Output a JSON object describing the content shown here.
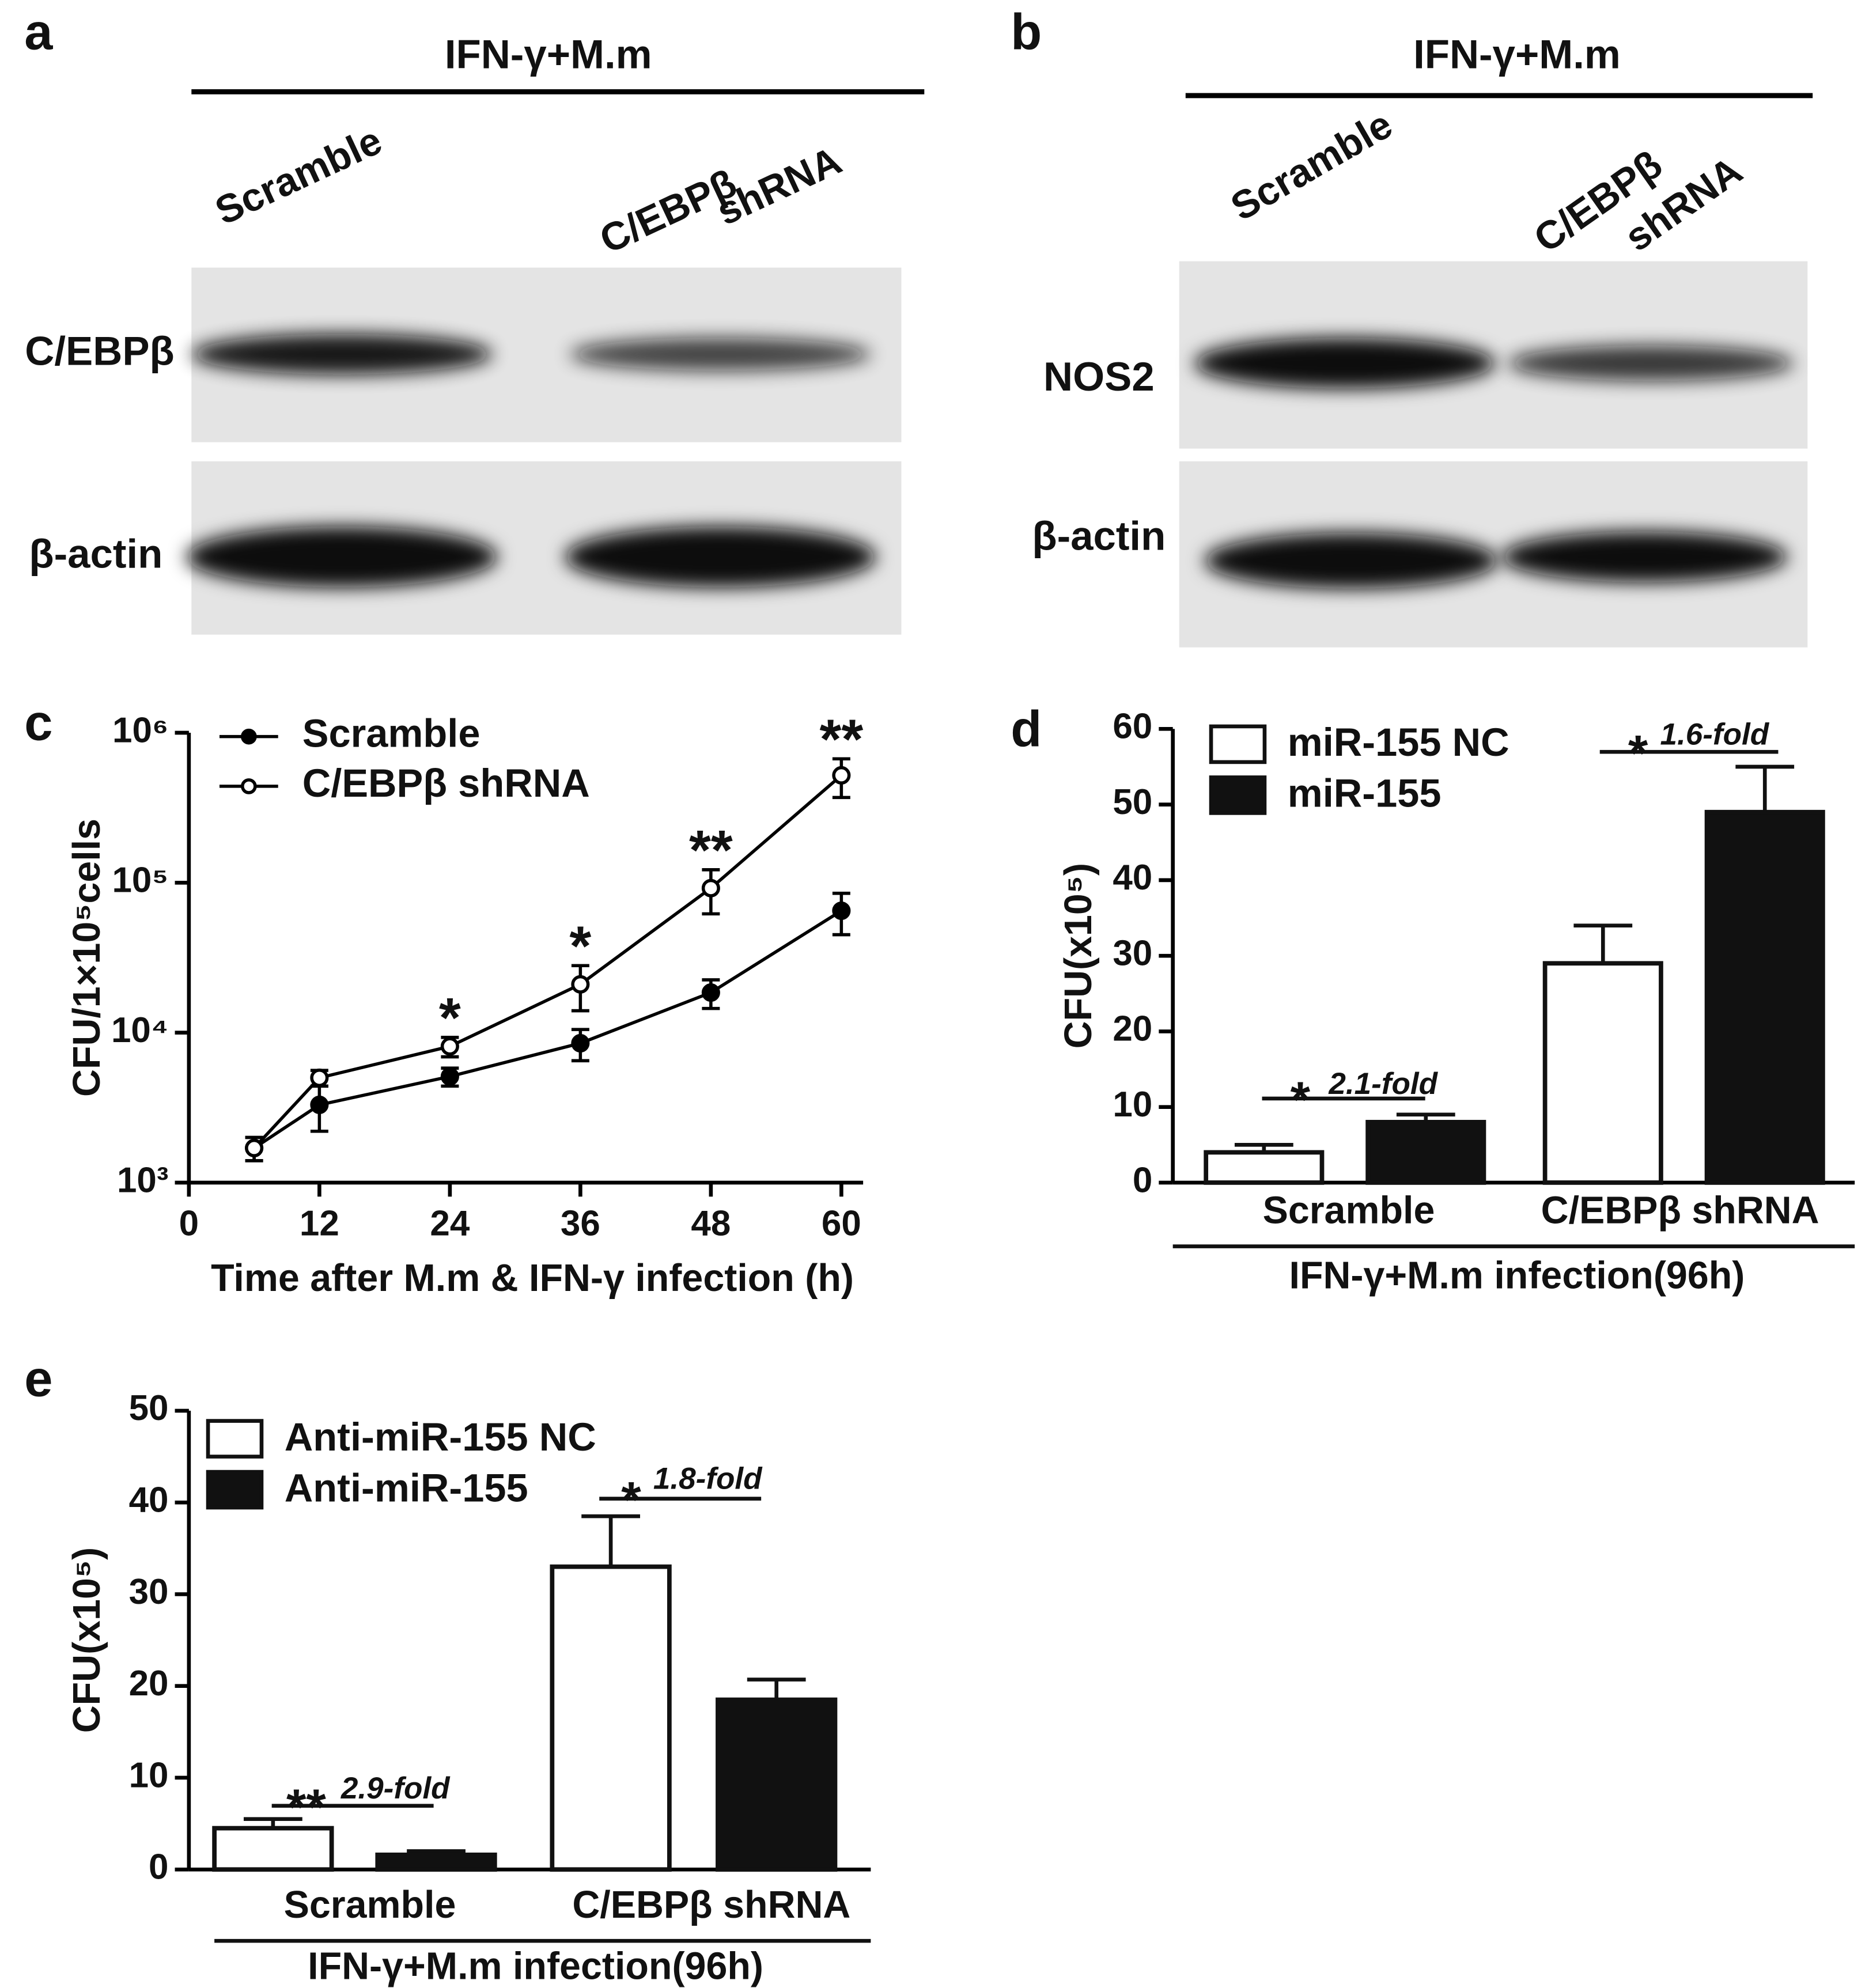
{
  "panel_labels": [
    "a",
    "b",
    "c",
    "d",
    "e"
  ],
  "blots": [
    {
      "title": "IFN-γ+M.m",
      "lanes": [
        [
          "Scramble"
        ],
        [
          "C/EBPβ",
          "shRNA"
        ]
      ],
      "rows": [
        "C/EBPβ",
        "β-actin"
      ]
    },
    {
      "title": "IFN-γ+M.m",
      "lanes": [
        [
          "Scramble"
        ],
        [
          "C/EBPβ",
          "shRNA"
        ]
      ],
      "rows": [
        "NOS2",
        "β-actin"
      ]
    }
  ],
  "chart_data": [
    {
      "type": "line",
      "log_y": true,
      "legend": "upper left",
      "y_label": "CFU/1×10⁵cells",
      "x_label": "Time after M.m & IFN-γ infection (h)",
      "x": [
        6,
        12,
        24,
        36,
        48,
        60
      ],
      "series": [
        {
          "name": "Scramble",
          "color": "#000000",
          "marker": "filled",
          "values": [
            1700,
            3300,
            5100,
            8500,
            18500,
            65000
          ],
          "errors": [
            300,
            1100,
            700,
            2000,
            4000,
            20000
          ]
        },
        {
          "name": "C/EBPβ shRNA",
          "color": "#000000",
          "marker": "open",
          "values": [
            1700,
            5000,
            8100,
            21000,
            92000,
            520000
          ],
          "errors": [
            300,
            600,
            1200,
            7000,
            30000,
            150000
          ]
        }
      ],
      "xlim": [
        0,
        62
      ],
      "xticks": [
        0,
        12,
        24,
        36,
        48,
        60
      ],
      "ylim": [
        1000,
        1000000
      ],
      "yticks": [
        {
          "value": 1000,
          "label": "10³"
        },
        {
          "value": 10000,
          "label": "10⁴"
        },
        {
          "value": 100000,
          "label": "10⁵"
        },
        {
          "value": 1000000,
          "label": "10⁶"
        }
      ],
      "annotations": [
        {
          "x": 24,
          "text": "*"
        },
        {
          "x": 36,
          "text": "*"
        },
        {
          "x": 48,
          "text": "**"
        },
        {
          "x": 60,
          "text": "**"
        }
      ]
    },
    {
      "type": "bar",
      "legend": "upper left",
      "y_label": "CFU(x10⁵)",
      "x_label": "IFN-γ+M.m infection(96h)",
      "categories": [
        "Scramble",
        "C/EBPβ shRNA"
      ],
      "series": [
        {
          "name": "miR-155 NC",
          "color": "#ffffff",
          "values": [
            4,
            29
          ],
          "errors": [
            1,
            5
          ]
        },
        {
          "name": "miR-155",
          "color": "#111111",
          "values": [
            8,
            49
          ],
          "errors": [
            1,
            6
          ]
        }
      ],
      "ylim": [
        0,
        60
      ],
      "yticks": [
        0,
        10,
        20,
        30,
        40,
        50,
        60
      ],
      "annotations": [
        {
          "stars": "*",
          "fold": "2.1-fold"
        },
        {
          "stars": "*",
          "fold": "1.6-fold"
        }
      ]
    },
    {
      "type": "bar",
      "legend": "upper left",
      "y_label": "CFU(x10⁵)",
      "x_label": "IFN-γ+M.m infection(96h)",
      "categories": [
        "Scramble",
        "C/EBPβ shRNA"
      ],
      "series": [
        {
          "name": "Anti-miR-155 NC",
          "color": "#ffffff",
          "values": [
            4.5,
            33
          ],
          "errors": [
            1,
            5.5
          ]
        },
        {
          "name": "Anti-miR-155",
          "color": "#111111",
          "values": [
            1.6,
            18.5
          ],
          "errors": [
            0.4,
            2.2
          ]
        }
      ],
      "ylim": [
        0,
        50
      ],
      "yticks": [
        0,
        10,
        20,
        30,
        40,
        50
      ],
      "annotations": [
        {
          "stars": "**",
          "fold": "2.9-fold"
        },
        {
          "stars": "*",
          "fold": "1.8-fold"
        }
      ]
    }
  ]
}
